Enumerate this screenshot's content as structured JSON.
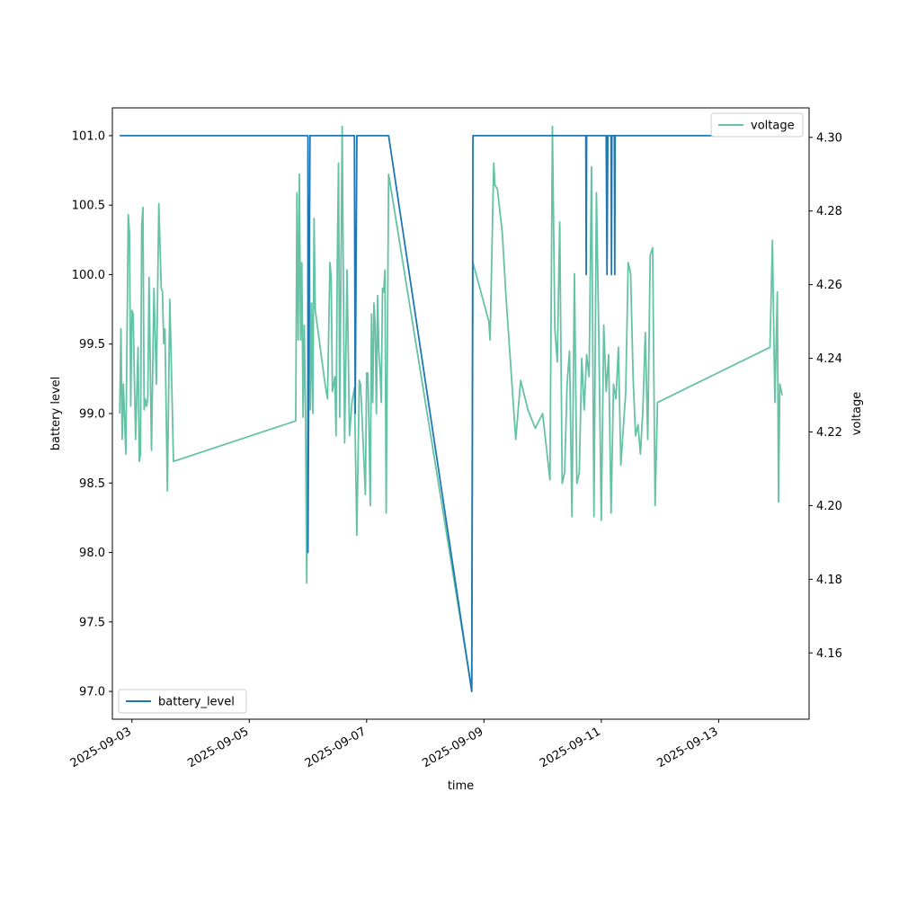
{
  "chart_data": {
    "type": "line",
    "xlabel": "time",
    "ylabel_left": "battery level",
    "ylabel_right": "voltage",
    "x_tick_labels": [
      "2025-09-03",
      "2025-09-05",
      "2025-09-07",
      "2025-09-09",
      "2025-09-11",
      "2025-09-13"
    ],
    "x_ticks": [
      "2025-09-03T00:00",
      "2025-09-05T00:00",
      "2025-09-07T00:00",
      "2025-09-09T00:00",
      "2025-09-11T00:00",
      "2025-09-13T00:00"
    ],
    "xlim": [
      "2025-09-02T16:00",
      "2025-09-14T13:00"
    ],
    "left_axis": {
      "ylim": [
        96.8,
        101.2
      ],
      "ticks": [
        97.0,
        97.5,
        98.0,
        98.5,
        99.0,
        99.5,
        100.0,
        100.5,
        101.0
      ],
      "tick_labels": [
        "97.0",
        "97.5",
        "98.0",
        "98.5",
        "99.0",
        "99.5",
        "100.0",
        "100.5",
        "101.0"
      ]
    },
    "right_axis": {
      "ylim": [
        4.142,
        4.308
      ],
      "ticks": [
        4.16,
        4.18,
        4.2,
        4.22,
        4.24,
        4.26,
        4.28,
        4.3
      ],
      "tick_labels": [
        "4.16",
        "4.18",
        "4.20",
        "4.22",
        "4.24",
        "4.26",
        "4.28",
        "4.30"
      ]
    },
    "grid": false,
    "series": [
      {
        "name": "battery_level",
        "axis": "left",
        "color": "#1f77b4",
        "legend_position": "lower-left",
        "points": [
          [
            "2025-09-02T19:00",
            101.0
          ],
          [
            "2025-09-06T00:00",
            101.0
          ],
          [
            "2025-09-06T00:00",
            98.0
          ],
          [
            "2025-09-06T00:50",
            101.0
          ],
          [
            "2025-09-06T19:00",
            101.0
          ],
          [
            "2025-09-06T19:20",
            99.0
          ],
          [
            "2025-09-06T20:00",
            101.0
          ],
          [
            "2025-09-07T09:00",
            101.0
          ],
          [
            "2025-09-08T19:00",
            97.0
          ],
          [
            "2025-09-08T19:30",
            101.0
          ],
          [
            "2025-09-10T17:40",
            101.0
          ],
          [
            "2025-09-10T17:50",
            100.0
          ],
          [
            "2025-09-10T18:00",
            101.0
          ],
          [
            "2025-09-11T02:00",
            101.0
          ],
          [
            "2025-09-11T02:20",
            100.0
          ],
          [
            "2025-09-11T02:40",
            101.0
          ],
          [
            "2025-09-11T04:00",
            101.0
          ],
          [
            "2025-09-11T04:10",
            100.0
          ],
          [
            "2025-09-11T04:20",
            101.0
          ],
          [
            "2025-09-11T05:20",
            101.0
          ],
          [
            "2025-09-11T05:30",
            100.0
          ],
          [
            "2025-09-11T05:40",
            101.0
          ],
          [
            "2025-09-14T02:00",
            101.0
          ]
        ]
      },
      {
        "name": "voltage",
        "axis": "right",
        "color": "#66c2a5",
        "legend_position": "upper-right",
        "points": [
          [
            "2025-09-02T19:00",
            4.225
          ],
          [
            "2025-09-02T19:30",
            4.248
          ],
          [
            "2025-09-02T20:00",
            4.218
          ],
          [
            "2025-09-02T20:30",
            4.233
          ],
          [
            "2025-09-02T21:30",
            4.214
          ],
          [
            "2025-09-02T22:30",
            4.279
          ],
          [
            "2025-09-02T23:00",
            4.274
          ],
          [
            "2025-09-02T23:30",
            4.227
          ],
          [
            "2025-09-03T00:00",
            4.253
          ],
          [
            "2025-09-03T00:30",
            4.252
          ],
          [
            "2025-09-03T01:30",
            4.218
          ],
          [
            "2025-09-03T02:30",
            4.243
          ],
          [
            "2025-09-03T03:00",
            4.212
          ],
          [
            "2025-09-03T03:30",
            4.214
          ],
          [
            "2025-09-03T04:00",
            4.276
          ],
          [
            "2025-09-03T04:30",
            4.281
          ],
          [
            "2025-09-03T05:00",
            4.226
          ],
          [
            "2025-09-03T05:30",
            4.229
          ],
          [
            "2025-09-03T06:00",
            4.227
          ],
          [
            "2025-09-03T06:30",
            4.229
          ],
          [
            "2025-09-03T07:00",
            4.262
          ],
          [
            "2025-09-03T08:00",
            4.215
          ],
          [
            "2025-09-03T09:00",
            4.259
          ],
          [
            "2025-09-03T10:00",
            4.233
          ],
          [
            "2025-09-03T11:00",
            4.282
          ],
          [
            "2025-09-03T12:00",
            4.259
          ],
          [
            "2025-09-03T12:30",
            4.258
          ],
          [
            "2025-09-03T13:00",
            4.244
          ],
          [
            "2025-09-03T13:30",
            4.248
          ],
          [
            "2025-09-03T14:30",
            4.204
          ],
          [
            "2025-09-03T15:30",
            4.256
          ],
          [
            "2025-09-03T17:00",
            4.212
          ],
          [
            "2025-09-05T19:00",
            4.223
          ],
          [
            "2025-09-05T19:30",
            4.285
          ],
          [
            "2025-09-05T20:00",
            4.245
          ],
          [
            "2025-09-05T20:30",
            4.29
          ],
          [
            "2025-09-05T21:00",
            4.245
          ],
          [
            "2025-09-05T21:30",
            4.266
          ],
          [
            "2025-09-05T22:00",
            4.224
          ],
          [
            "2025-09-05T22:30",
            4.249
          ],
          [
            "2025-09-05T23:00",
            4.226
          ],
          [
            "2025-09-05T23:30",
            4.179
          ],
          [
            "2025-09-06T00:30",
            4.284
          ],
          [
            "2025-09-06T01:00",
            4.226
          ],
          [
            "2025-09-06T01:30",
            4.255
          ],
          [
            "2025-09-06T02:00",
            4.225
          ],
          [
            "2025-09-06T02:30",
            4.278
          ],
          [
            "2025-09-06T03:00",
            4.253
          ],
          [
            "2025-09-06T07:00",
            4.233
          ],
          [
            "2025-09-06T08:00",
            4.229
          ],
          [
            "2025-09-06T09:00",
            4.266
          ],
          [
            "2025-09-06T09:30",
            4.262
          ],
          [
            "2025-09-06T10:00",
            4.231
          ],
          [
            "2025-09-06T11:00",
            4.235
          ],
          [
            "2025-09-06T11:30",
            4.219
          ],
          [
            "2025-09-06T12:00",
            4.266
          ],
          [
            "2025-09-06T12:30",
            4.293
          ],
          [
            "2025-09-06T13:00",
            4.224
          ],
          [
            "2025-09-06T14:00",
            4.303
          ],
          [
            "2025-09-06T15:00",
            4.217
          ],
          [
            "2025-09-06T16:00",
            4.264
          ],
          [
            "2025-09-06T17:00",
            4.219
          ],
          [
            "2025-09-06T18:00",
            4.228
          ],
          [
            "2025-09-06T19:00",
            4.232
          ],
          [
            "2025-09-06T20:00",
            4.192
          ],
          [
            "2025-09-06T20:30",
            4.213
          ],
          [
            "2025-09-06T21:00",
            4.234
          ],
          [
            "2025-09-06T21:30",
            4.233
          ],
          [
            "2025-09-06T22:00",
            4.226
          ],
          [
            "2025-09-06T23:30",
            4.203
          ],
          [
            "2025-09-07T00:00",
            4.236
          ],
          [
            "2025-09-07T00:30",
            4.236
          ],
          [
            "2025-09-07T01:00",
            4.22
          ],
          [
            "2025-09-07T01:30",
            4.2
          ],
          [
            "2025-09-07T02:00",
            4.252
          ],
          [
            "2025-09-07T02:30",
            4.228
          ],
          [
            "2025-09-07T03:00",
            4.255
          ],
          [
            "2025-09-07T03:30",
            4.249
          ],
          [
            "2025-09-07T04:00",
            4.225
          ],
          [
            "2025-09-07T04:30",
            4.257
          ],
          [
            "2025-09-07T05:00",
            4.242
          ],
          [
            "2025-09-07T05:30",
            4.237
          ],
          [
            "2025-09-07T06:00",
            4.228
          ],
          [
            "2025-09-07T06:30",
            4.259
          ],
          [
            "2025-09-07T07:00",
            4.258
          ],
          [
            "2025-09-07T07:30",
            4.264
          ],
          [
            "2025-09-07T08:00",
            4.198
          ],
          [
            "2025-09-07T09:00",
            4.29
          ],
          [
            "2025-09-08T19:00",
            4.15
          ],
          [
            "2025-09-08T19:30",
            4.266
          ],
          [
            "2025-09-09T02:00",
            4.25
          ],
          [
            "2025-09-09T02:30",
            4.245
          ],
          [
            "2025-09-09T04:00",
            4.293
          ],
          [
            "2025-09-09T04:30",
            4.287
          ],
          [
            "2025-09-09T05:30",
            4.286
          ],
          [
            "2025-09-09T07:30",
            4.274
          ],
          [
            "2025-09-09T09:00",
            4.257
          ],
          [
            "2025-09-09T13:00",
            4.218
          ],
          [
            "2025-09-09T15:00",
            4.234
          ],
          [
            "2025-09-09T18:00",
            4.226
          ],
          [
            "2025-09-09T21:00",
            4.221
          ],
          [
            "2025-09-10T00:00",
            4.225
          ],
          [
            "2025-09-10T03:00",
            4.207
          ],
          [
            "2025-09-10T04:00",
            4.303
          ],
          [
            "2025-09-10T05:00",
            4.248
          ],
          [
            "2025-09-10T06:00",
            4.239
          ],
          [
            "2025-09-10T07:00",
            4.277
          ],
          [
            "2025-09-10T08:00",
            4.206
          ],
          [
            "2025-09-10T09:00",
            4.209
          ],
          [
            "2025-09-10T10:00",
            4.233
          ],
          [
            "2025-09-10T11:00",
            4.242
          ],
          [
            "2025-09-10T12:00",
            4.197
          ],
          [
            "2025-09-10T13:00",
            4.263
          ],
          [
            "2025-09-10T14:00",
            4.206
          ],
          [
            "2025-09-10T15:00",
            4.209
          ],
          [
            "2025-09-10T16:00",
            4.24
          ],
          [
            "2025-09-10T17:00",
            4.226
          ],
          [
            "2025-09-10T18:00",
            4.241
          ],
          [
            "2025-09-10T19:00",
            4.235
          ],
          [
            "2025-09-10T20:00",
            4.292
          ],
          [
            "2025-09-10T21:00",
            4.197
          ],
          [
            "2025-09-10T22:00",
            4.285
          ],
          [
            "2025-09-10T23:00",
            4.245
          ],
          [
            "2025-09-11T00:00",
            4.196
          ],
          [
            "2025-09-11T01:00",
            4.249
          ],
          [
            "2025-09-11T02:00",
            4.231
          ],
          [
            "2025-09-11T03:00",
            4.241
          ],
          [
            "2025-09-11T04:00",
            4.198
          ],
          [
            "2025-09-11T05:00",
            4.233
          ],
          [
            "2025-09-11T06:00",
            4.229
          ],
          [
            "2025-09-11T07:00",
            4.243
          ],
          [
            "2025-09-11T08:00",
            4.211
          ],
          [
            "2025-09-11T10:00",
            4.231
          ],
          [
            "2025-09-11T11:00",
            4.266
          ],
          [
            "2025-09-11T12:00",
            4.263
          ],
          [
            "2025-09-11T13:00",
            4.235
          ],
          [
            "2025-09-11T14:00",
            4.219
          ],
          [
            "2025-09-11T15:00",
            4.222
          ],
          [
            "2025-09-11T16:00",
            4.214
          ],
          [
            "2025-09-11T17:00",
            4.226
          ],
          [
            "2025-09-11T18:00",
            4.247
          ],
          [
            "2025-09-11T19:00",
            4.218
          ],
          [
            "2025-09-11T20:00",
            4.268
          ],
          [
            "2025-09-11T21:00",
            4.27
          ],
          [
            "2025-09-11T22:00",
            4.2
          ],
          [
            "2025-09-11T23:00",
            4.228
          ],
          [
            "2025-09-13T21:00",
            4.243
          ],
          [
            "2025-09-13T22:00",
            4.272
          ],
          [
            "2025-09-13T23:00",
            4.228
          ],
          [
            "2025-09-14T00:00",
            4.258
          ],
          [
            "2025-09-14T00:30",
            4.201
          ],
          [
            "2025-09-14T01:00",
            4.233
          ],
          [
            "2025-09-14T02:00",
            4.23
          ]
        ]
      }
    ]
  }
}
